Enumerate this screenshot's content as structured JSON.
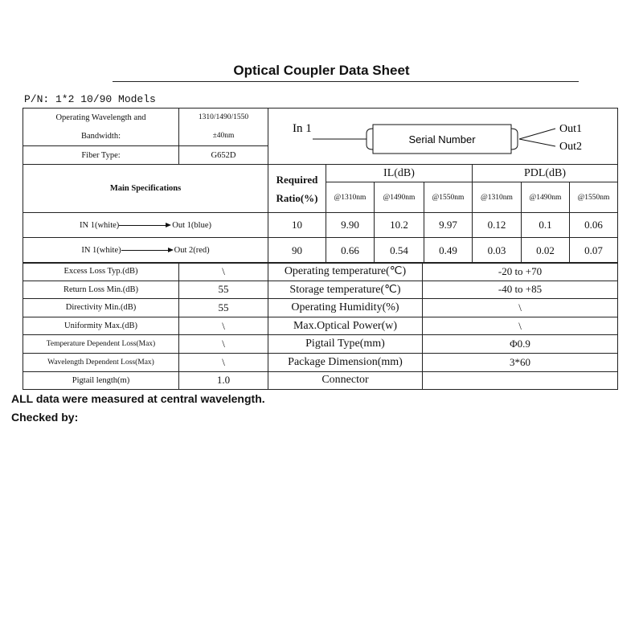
{
  "title": "Optical Coupler Data Sheet",
  "part_number": "P/N: 1*2 10/90  Models",
  "header": {
    "wavelength_label_1": "Operating Wavelength and",
    "wavelength_label_2": "Bandwidth:",
    "wavelength_value_1": "1310/1490/1550",
    "wavelength_value_2": "±40nm",
    "fiber_type_label": "Fiber Type:",
    "fiber_type_value": "G652D"
  },
  "diagram": {
    "input": "In 1",
    "box_label": "Serial Number",
    "out1": "Out1",
    "out2": "Out2"
  },
  "specs": {
    "main_label": "Main Specifications",
    "ratio_label_1": "Required",
    "ratio_label_2": "Ratio(%)",
    "il_label": "IL(dB)",
    "pdl_label": "PDL(dB)",
    "wavelengths": [
      "@1310nm",
      "@1490nm",
      "@1550nm",
      "@1310nm",
      "@1490nm",
      "@1550nm"
    ],
    "rows": [
      {
        "from": "IN 1(white)",
        "to": "Out 1(blue)",
        "ratio": "10",
        "values": [
          "9.90",
          "10.2",
          "9.97",
          "0.12",
          "0.1",
          "0.06"
        ]
      },
      {
        "from": "IN 1(white)",
        "to": "Out 2(red)",
        "ratio": "90",
        "values": [
          "0.66",
          "0.54",
          "0.49",
          "0.03",
          "0.02",
          "0.07"
        ]
      }
    ]
  },
  "params": [
    {
      "label": "Excess Loss Typ.(dB)",
      "value": "\\",
      "label2": "Operating temperature(℃)",
      "value2": "-20 to +70"
    },
    {
      "label": "Return Loss Min.(dB)",
      "value": "55",
      "label2": "Storage temperature(℃)",
      "value2": "-40 to +85"
    },
    {
      "label": "Directivity Min.(dB)",
      "value": "55",
      "label2": "Operating Humidity(%)",
      "value2": "\\"
    },
    {
      "label": "Uniformity Max.(dB)",
      "value": "\\",
      "label2": "Max.Optical Power(w)",
      "value2": "\\"
    },
    {
      "label": "Temperature Dependent Loss(Max)",
      "value": "\\",
      "label2": "Pigtail Type(mm)",
      "value2": "Φ0.9"
    },
    {
      "label": "Wavelength Dependent Loss(Max)",
      "value": "\\",
      "label2": "Package Dimension(mm)",
      "value2": "3*60"
    },
    {
      "label": "Pigtail length(m)",
      "value": "1.0",
      "label2": "Connector",
      "value2": ""
    }
  ],
  "footer": {
    "note": "ALL data were measured at central wavelength.",
    "checked_by": "Checked by:"
  }
}
